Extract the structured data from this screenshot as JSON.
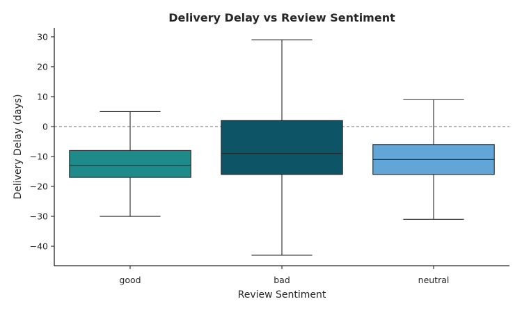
{
  "chart_data": {
    "type": "box",
    "title": "Delivery Delay vs Review Sentiment",
    "xlabel": "Review Sentiment",
    "ylabel": "Delivery Delay (days)",
    "ylim": [
      -46.5,
      33
    ],
    "yticks": [
      -40,
      -30,
      -20,
      -10,
      0,
      10,
      20,
      30
    ],
    "reference_line": 0,
    "grid": false,
    "categories": [
      "good",
      "bad",
      "neutral"
    ],
    "boxes": [
      {
        "category": "good",
        "whisker_low": -30,
        "q1": -17,
        "median": -13,
        "q3": -8,
        "whisker_high": 5,
        "color": "#1e8a8a"
      },
      {
        "category": "bad",
        "whisker_low": -43,
        "q1": -16,
        "median": -9,
        "q3": 2,
        "whisker_high": 29,
        "color": "#0d5466"
      },
      {
        "category": "neutral",
        "whisker_low": -31,
        "q1": -16,
        "median": -11,
        "q3": -6,
        "whisker_high": 9,
        "color": "#62a6d8"
      }
    ]
  }
}
